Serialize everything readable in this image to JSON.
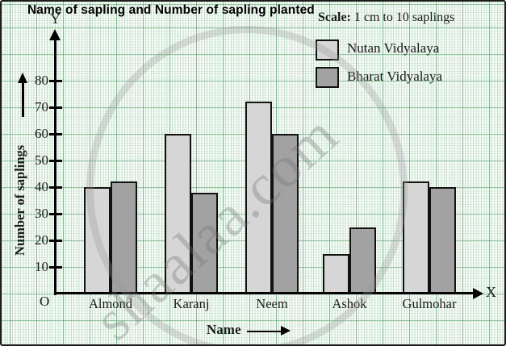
{
  "title": "Name of sapling and Number of sapling planted",
  "scale": {
    "label": "Scale:",
    "value": "1 cm to 10 saplings"
  },
  "watermark": "shaalaa.com",
  "axes": {
    "origin": "O",
    "x_letter": "X",
    "y_letter": "Y",
    "x_label": "Name",
    "y_label": "Number of saplings"
  },
  "legend": {
    "items": [
      {
        "label": "Nutan Vidyalaya",
        "color": "#d6d6d6"
      },
      {
        "label": "Bharat Vidyalaya",
        "color": "#a2a2a2"
      }
    ]
  },
  "chart_data": {
    "type": "bar",
    "title": "Name of sapling and Number of sapling planted",
    "xlabel": "Name",
    "ylabel": "Number of saplings",
    "categories": [
      "Almond",
      "Karanj",
      "Neem",
      "Ashok",
      "Gulmohar"
    ],
    "series": [
      {
        "name": "Nutan Vidyalaya",
        "color": "#d6d6d6",
        "values": [
          40,
          60,
          72,
          15,
          42
        ]
      },
      {
        "name": "Bharat Vidyalaya",
        "color": "#a2a2a2",
        "values": [
          42,
          38,
          60,
          25,
          40
        ]
      }
    ],
    "y_ticks": [
      10,
      20,
      30,
      40,
      50,
      60,
      70,
      80
    ],
    "ylim": [
      0,
      90
    ],
    "scale_note": "1 cm to 10 saplings",
    "legend_position": "top-right",
    "grid": "graph-paper"
  }
}
